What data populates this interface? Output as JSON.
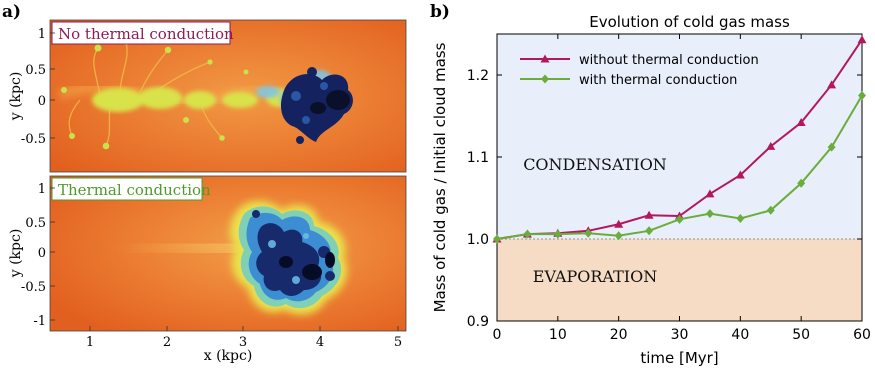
{
  "panel_a": {
    "letter": "a)",
    "top_label": "No thermal conduction",
    "bottom_label": "Thermal conduction",
    "ylabel": "y (kpc)",
    "xlabel": "x (kpc)",
    "top_yticks": [
      "1",
      "0.5",
      "0",
      "-0.5"
    ],
    "bottom_yticks": [
      "1",
      "0.5",
      "0",
      "-0.5",
      "-1"
    ],
    "xticks": [
      "1",
      "2",
      "3",
      "4",
      "5"
    ],
    "colors": {
      "hot_background": "#e8702a",
      "label_no_conduction": "#8e1b55",
      "label_conduction": "#4f9a2a",
      "cold_core": "#101c54"
    }
  },
  "panel_b": {
    "letter": "b)",
    "region_upper": "CONDENSATION",
    "region_lower": "EVAPORATION",
    "colors": {
      "upper_fill": "#e8eefa",
      "lower_fill": "#f6dcc4",
      "series_without": "#b3185e",
      "series_with": "#6aad3c"
    }
  },
  "chart_data": {
    "type": "line",
    "title": "Evolution of cold gas mass",
    "xlabel": "time [Myr]",
    "ylabel": "Mass of cold gas / Initial cloud mass",
    "xlim": [
      0,
      60
    ],
    "ylim": [
      0.9,
      1.25
    ],
    "xticks": [
      0,
      10,
      20,
      30,
      40,
      50,
      60
    ],
    "yticks": [
      0.9,
      1.0,
      1.1,
      1.2
    ],
    "ytick_labels": [
      "0.9",
      "1.0",
      "1.1",
      "1.2"
    ],
    "legend_position": "top-left",
    "x": [
      0,
      5,
      10,
      15,
      20,
      25,
      30,
      35,
      40,
      45,
      50,
      55,
      60
    ],
    "series": [
      {
        "name": "without thermal conduction",
        "marker": "triangle",
        "values": [
          1.0,
          1.006,
          1.007,
          1.01,
          1.018,
          1.029,
          1.028,
          1.055,
          1.078,
          1.113,
          1.142,
          1.188,
          1.243
        ]
      },
      {
        "name": "with thermal conduction",
        "marker": "diamond",
        "values": [
          1.0,
          1.006,
          1.006,
          1.007,
          1.004,
          1.01,
          1.024,
          1.031,
          1.025,
          1.035,
          1.068,
          1.112,
          1.175
        ]
      }
    ]
  }
}
